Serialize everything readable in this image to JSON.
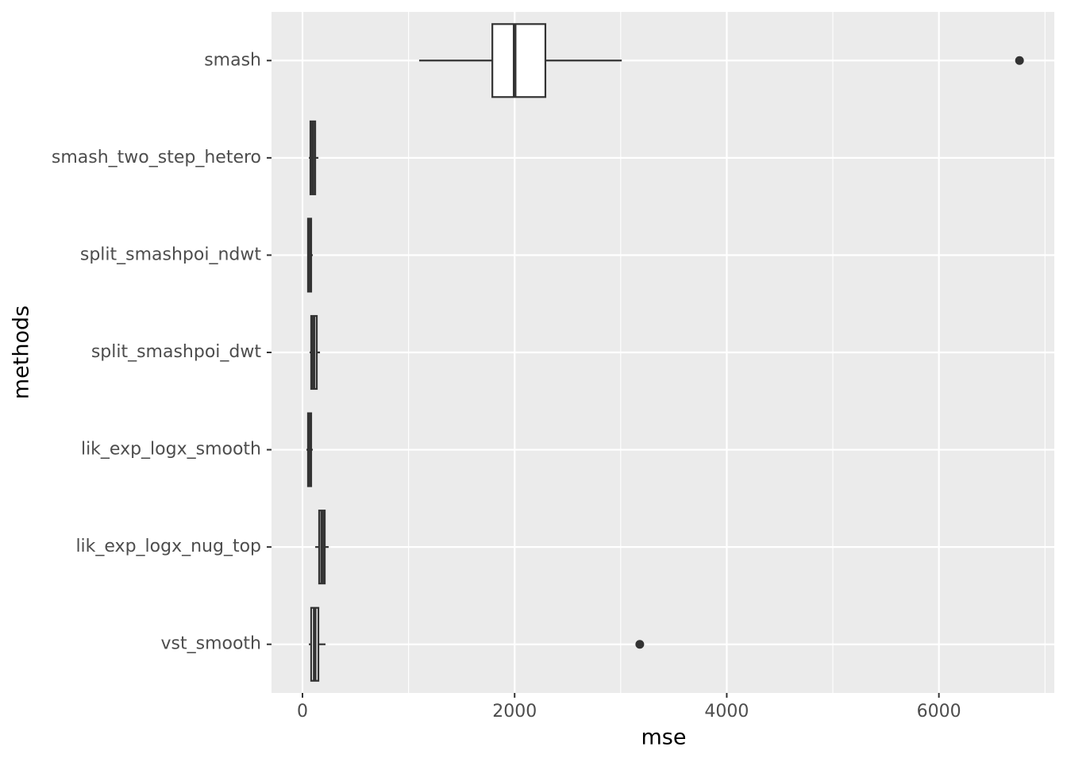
{
  "chart_data": {
    "type": "boxplot",
    "x_label": "mse",
    "y_label": "methods",
    "categories": [
      "smash",
      "smash_two_step_hetero",
      "split_smashpoi_ndwt",
      "split_smashpoi_dwt",
      "lik_exp_logx_smooth",
      "lik_exp_logx_nug_top",
      "vst_smooth"
    ],
    "boxes": [
      {
        "min": 1100,
        "q1": 1790,
        "median": 2000,
        "q3": 2290,
        "max": 3010,
        "outliers": [
          6760
        ]
      },
      {
        "min": 60,
        "q1": 75,
        "median": 95,
        "q3": 120,
        "max": 150,
        "outliers": []
      },
      {
        "min": 45,
        "q1": 52,
        "median": 68,
        "q3": 82,
        "max": 97,
        "outliers": []
      },
      {
        "min": 67,
        "q1": 82,
        "median": 105,
        "q3": 135,
        "max": 165,
        "outliers": []
      },
      {
        "min": 37,
        "q1": 52,
        "median": 65,
        "q3": 82,
        "max": 97,
        "outliers": []
      },
      {
        "min": 120,
        "q1": 157,
        "median": 185,
        "q3": 210,
        "max": 247,
        "outliers": []
      },
      {
        "min": 60,
        "q1": 82,
        "median": 115,
        "q3": 150,
        "max": 217,
        "outliers": [
          3180
        ]
      }
    ],
    "xlim": [
      -292,
      7088
    ],
    "xticks": [
      0,
      2000,
      4000,
      6000
    ],
    "minor_xticks": [
      1000,
      3000,
      5000,
      7000
    ],
    "grid": true,
    "box_fill": "#ffffff",
    "box_stroke": "#333333",
    "panel_color": "#ebebeb"
  }
}
